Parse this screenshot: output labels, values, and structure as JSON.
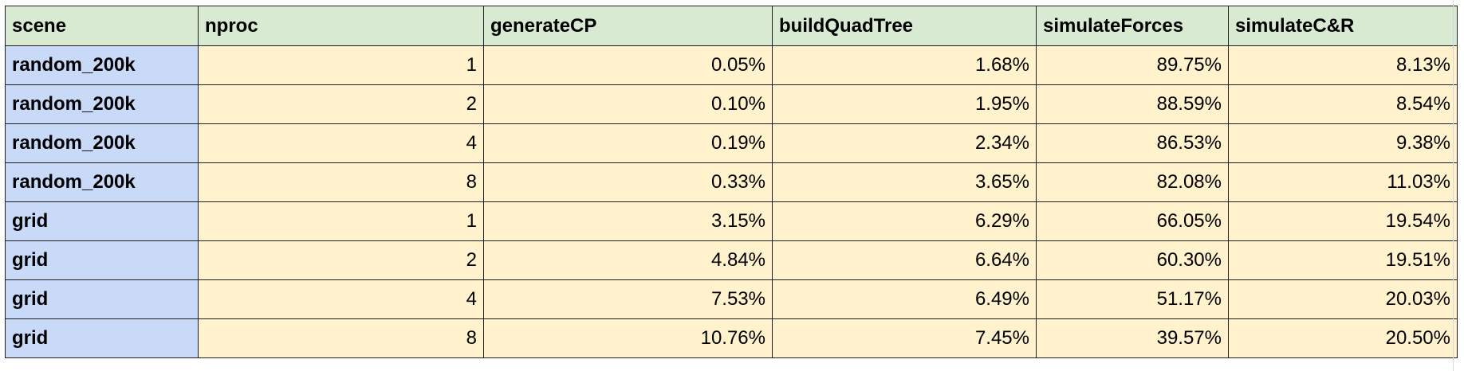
{
  "table": {
    "headers": [
      "scene",
      "nproc",
      "generateCP",
      "buildQuadTree",
      "simulateForces",
      "simulateC&R"
    ],
    "rows": [
      [
        "random_200k",
        "1",
        "0.05%",
        "1.68%",
        "89.75%",
        "8.13%"
      ],
      [
        "random_200k",
        "2",
        "0.10%",
        "1.95%",
        "88.59%",
        "8.54%"
      ],
      [
        "random_200k",
        "4",
        "0.19%",
        "2.34%",
        "86.53%",
        "9.38%"
      ],
      [
        "random_200k",
        "8",
        "0.33%",
        "3.65%",
        "82.08%",
        "11.03%"
      ],
      [
        "grid",
        "1",
        "3.15%",
        "6.29%",
        "66.05%",
        "19.54%"
      ],
      [
        "grid",
        "2",
        "4.84%",
        "6.64%",
        "60.30%",
        "19.51%"
      ],
      [
        "grid",
        "4",
        "7.53%",
        "6.49%",
        "51.17%",
        "20.03%"
      ],
      [
        "grid",
        "8",
        "10.76%",
        "7.45%",
        "39.57%",
        "20.50%"
      ]
    ]
  },
  "colors": {
    "header_bg": "#d9ead3",
    "scene_bg": "#c9daf8",
    "value_bg": "#fff2cc",
    "border": "#1f1f1f"
  }
}
